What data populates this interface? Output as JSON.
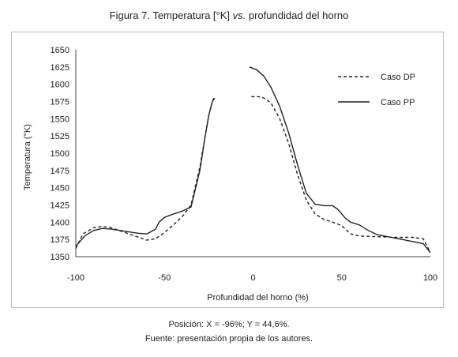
{
  "figure": {
    "title_prefix": "Figura 7. Temperatura [°K] ",
    "title_vs": "vs.",
    "title_suffix": " profundidad del horno",
    "caption_line1": "Posición: X = -96%; Y = 44,6%.",
    "caption_line2": "Fuente: presentación propia de los autores."
  },
  "chart_data": {
    "type": "line",
    "title": "Figura 7. Temperatura [°K] vs. profundidad del horno",
    "xlabel": "Profundidad del horno (%)",
    "ylabel": "Temperatura (°K)",
    "xlim": [
      -100,
      100
    ],
    "ylim": [
      1350,
      1650
    ],
    "xticks": [
      -100,
      -50,
      0,
      50,
      100
    ],
    "yticks": [
      1350,
      1375,
      1400,
      1425,
      1450,
      1475,
      1500,
      1525,
      1550,
      1575,
      1600,
      1625,
      1650
    ],
    "grid": false,
    "legend_position": "top-right",
    "series": [
      {
        "name": "Caso DP",
        "style": "dashed",
        "color": "#222222",
        "segments": [
          {
            "x": [
              -100,
              -96,
              -90,
              -85,
              -80,
              -70,
              -60,
              -55,
              -50,
              -45,
              -40,
              -35,
              -30,
              -27,
              -25,
              -23,
              -21
            ],
            "y": [
              1362,
              1383,
              1392,
              1394,
              1392,
              1383,
              1374,
              1376,
              1385,
              1396,
              1408,
              1425,
              1480,
              1525,
              1555,
              1575,
              1582
            ]
          },
          {
            "x": [
              -1,
              3,
              6,
              10,
              15,
              20,
              25,
              30,
              35,
              40,
              45,
              50,
              55,
              60,
              70,
              80,
              90,
              96,
              100
            ],
            "y": [
              1582,
              1582,
              1580,
              1573,
              1550,
              1515,
              1470,
              1432,
              1412,
              1404,
              1400,
              1395,
              1383,
              1380,
              1379,
              1378,
              1378,
              1376,
              1356
            ]
          }
        ]
      },
      {
        "name": "Caso PP",
        "style": "solid",
        "color": "#222222",
        "segments": [
          {
            "x": [
              -100,
              -95,
              -90,
              -85,
              -80,
              -75,
              -70,
              -65,
              -60,
              -55,
              -53,
              -50,
              -45,
              -40,
              -35,
              -30,
              -27,
              -25,
              -23,
              -22
            ],
            "y": [
              1365,
              1380,
              1388,
              1391,
              1390,
              1388,
              1386,
              1384,
              1383,
              1390,
              1400,
              1407,
              1412,
              1416,
              1422,
              1475,
              1525,
              1555,
              1575,
              1580
            ]
          },
          {
            "x": [
              -2,
              2,
              6,
              10,
              15,
              20,
              25,
              30,
              35,
              40,
              45,
              48,
              52,
              55,
              60,
              65,
              70,
              80,
              90,
              96,
              100
            ],
            "y": [
              1625,
              1621,
              1612,
              1596,
              1568,
              1530,
              1484,
              1442,
              1426,
              1424,
              1424,
              1418,
              1406,
              1400,
              1396,
              1388,
              1382,
              1377,
              1372,
              1369,
              1356
            ]
          }
        ]
      }
    ]
  }
}
